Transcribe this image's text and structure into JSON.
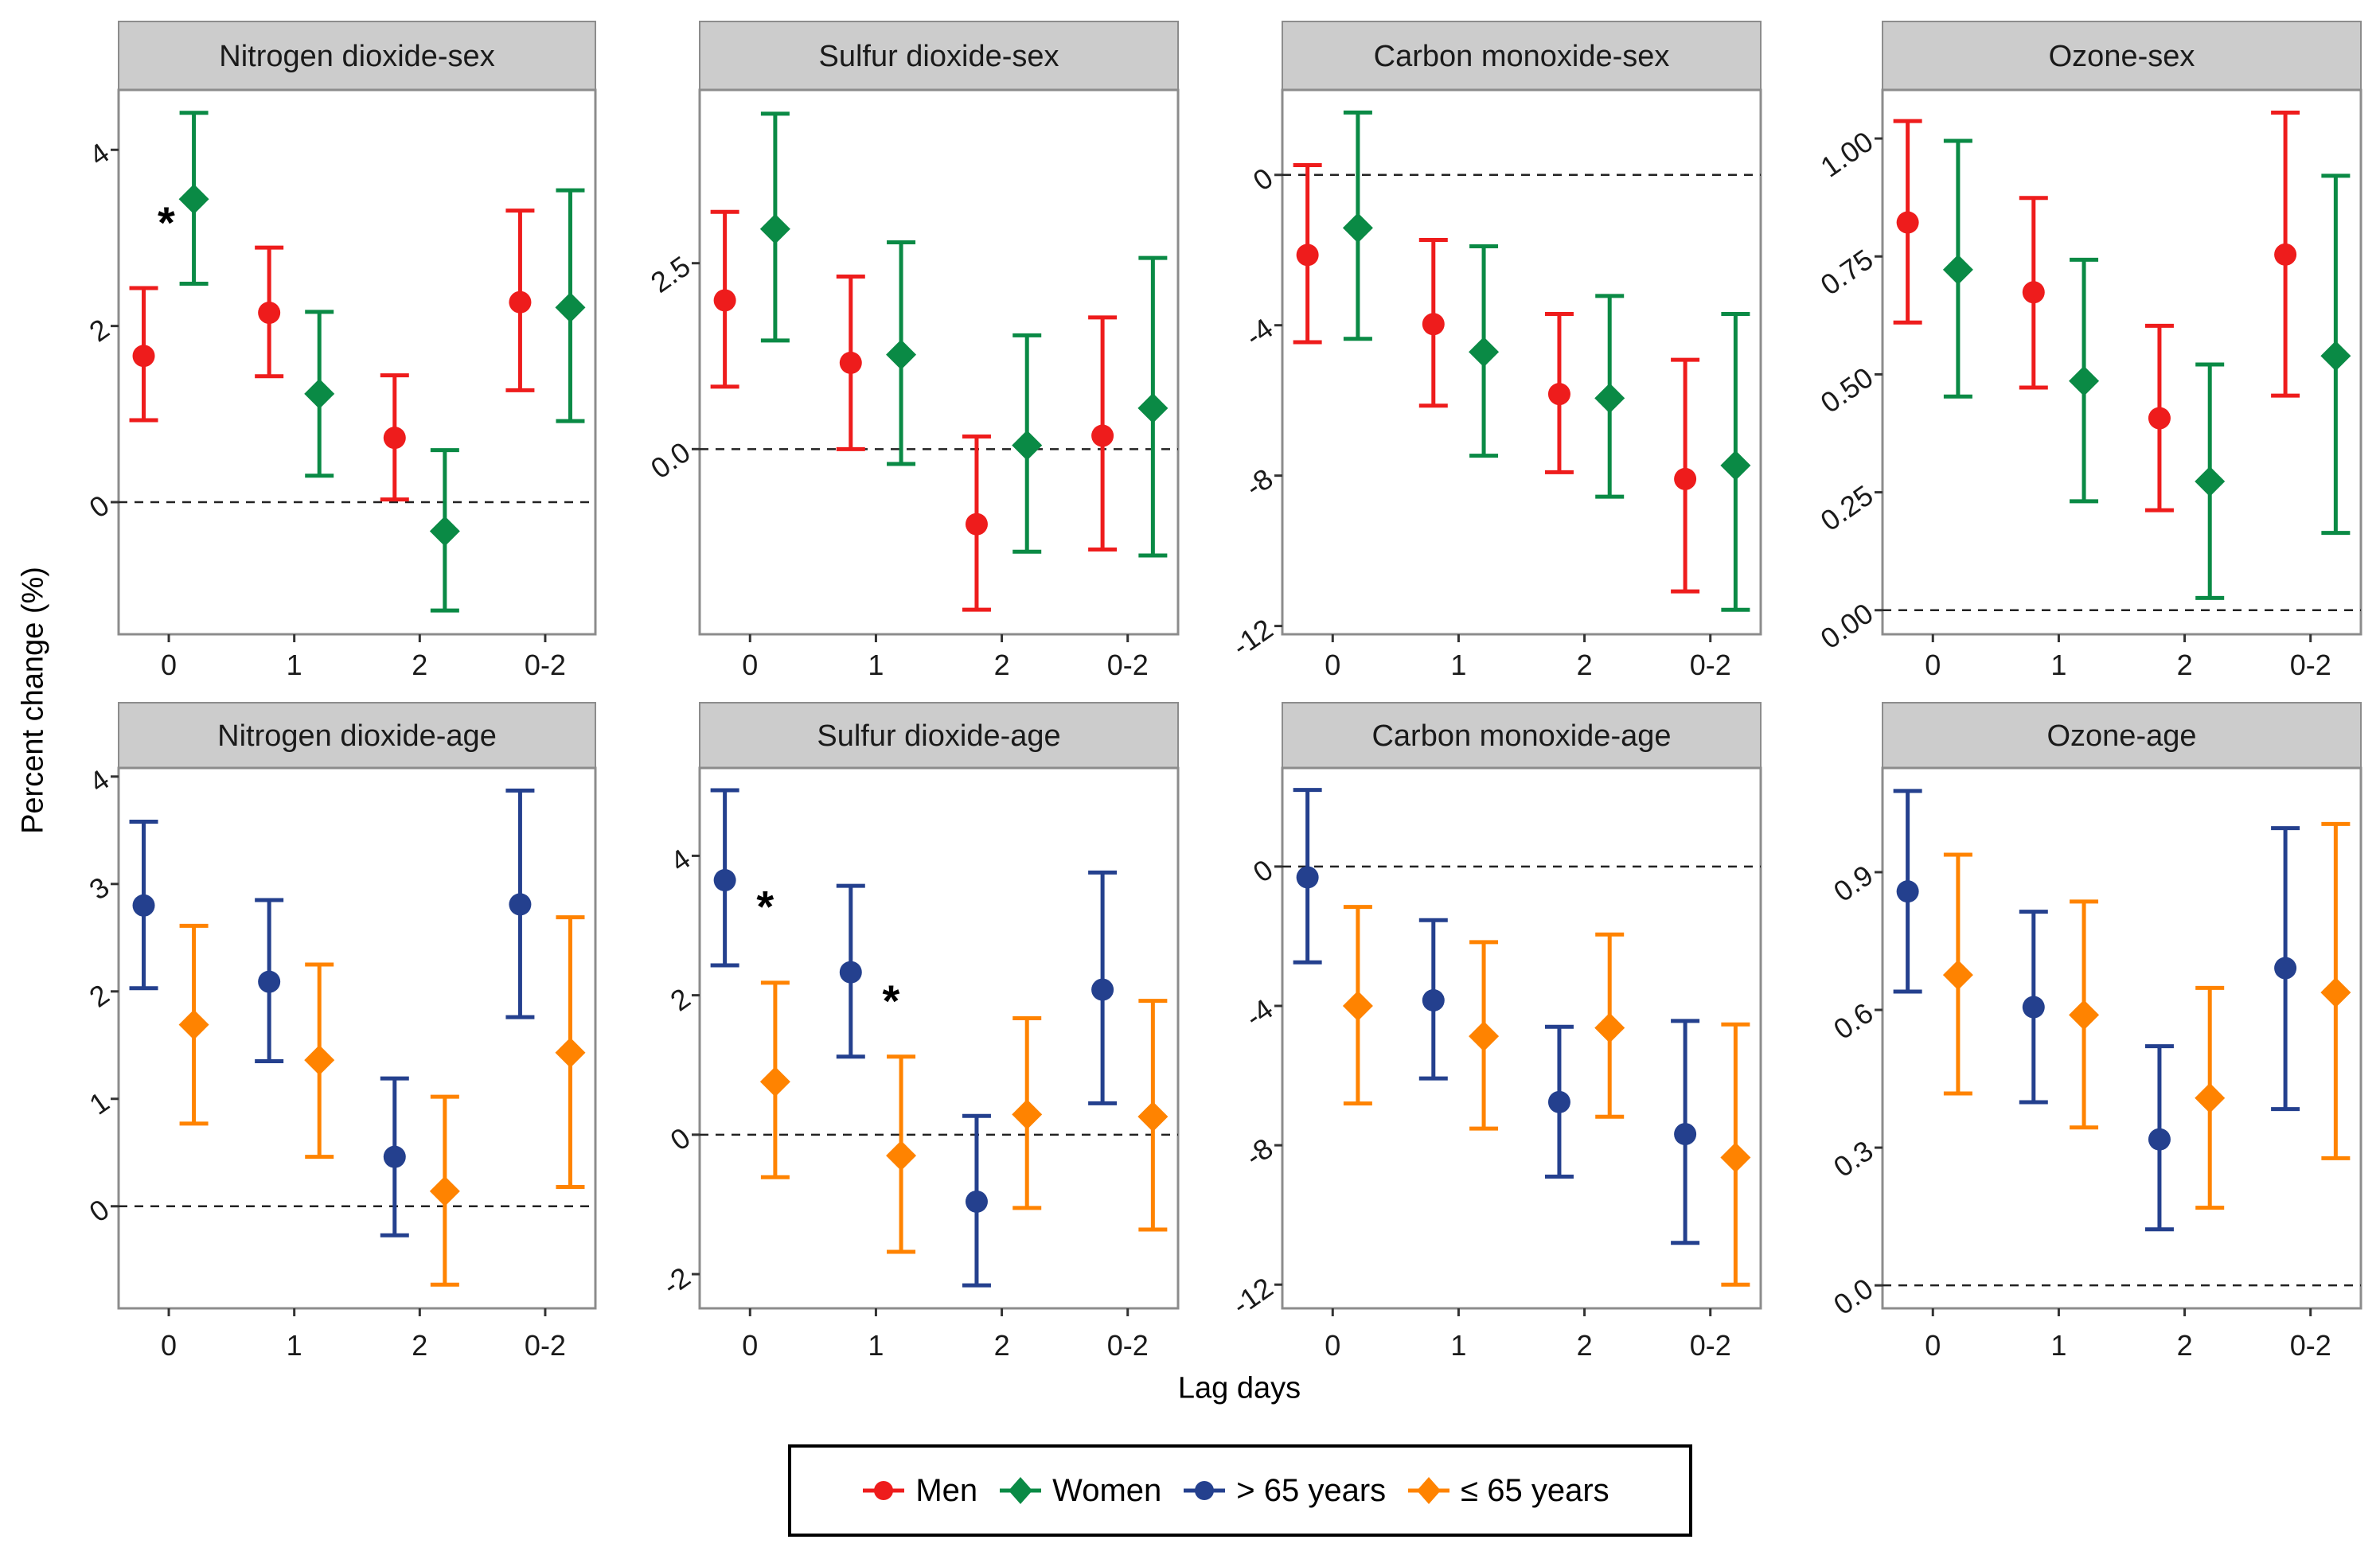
{
  "figure": {
    "ylabel": "Percent change (%)",
    "xlabel": "Lag days"
  },
  "legend": {
    "placement": "bottom-center",
    "items": [
      {
        "label": "Men",
        "color": "#ee1c1c",
        "shape": "circle"
      },
      {
        "label": "Women",
        "color": "#0a8a45",
        "shape": "diamond"
      },
      {
        "label": "> 65 years",
        "color": "#24408e",
        "shape": "circle"
      },
      {
        "label": "≤ 65 years",
        "color": "#ff8300",
        "shape": "diamond"
      }
    ]
  },
  "chart_data": [
    {
      "type": "scatter",
      "title": "Nitrogen dioxide-sex",
      "categories": [
        "0",
        "1",
        "2",
        "0-2"
      ],
      "xlabel": "Lag days",
      "ylabel": "Percent change (%)",
      "ylim": [
        -1.5,
        4.68
      ],
      "yticks": [
        0,
        2,
        4
      ],
      "ytick_labels": [
        "0",
        "2",
        "4"
      ],
      "reference_line": 0,
      "series": [
        {
          "name": "Men",
          "color": "#ee1c1c",
          "shape": "circle",
          "values": [
            1.66,
            2.15,
            0.73,
            2.27
          ],
          "lower": [
            0.93,
            1.43,
            0.03,
            1.27
          ],
          "upper": [
            2.43,
            2.89,
            1.44,
            3.31
          ]
        },
        {
          "name": "Women",
          "color": "#0a8a45",
          "shape": "diamond",
          "values": [
            3.44,
            1.23,
            -0.33,
            2.21
          ],
          "lower": [
            2.48,
            0.3,
            -1.23,
            0.92
          ],
          "upper": [
            4.42,
            2.16,
            0.59,
            3.54
          ]
        }
      ],
      "annotations": [
        {
          "text": "*",
          "category_index": 0,
          "offset": -0.02,
          "y": 3.2
        }
      ]
    },
    {
      "type": "scatter",
      "title": "Sulfur dioxide-sex",
      "categories": [
        "0",
        "1",
        "2",
        "0-2"
      ],
      "ylim": [
        -2.49,
        4.83
      ],
      "yticks": [
        0,
        2.5
      ],
      "ytick_labels": [
        "0.0",
        "2.5"
      ],
      "reference_line": 0,
      "series": [
        {
          "name": "Men",
          "color": "#ee1c1c",
          "shape": "circle",
          "values": [
            2.0,
            1.16,
            -1.01,
            0.18
          ],
          "lower": [
            0.84,
            0.0,
            -2.16,
            -1.35
          ],
          "upper": [
            3.19,
            2.32,
            0.17,
            1.77
          ]
        },
        {
          "name": "Women",
          "color": "#0a8a45",
          "shape": "diamond",
          "values": [
            2.96,
            1.27,
            0.05,
            0.55
          ],
          "lower": [
            1.46,
            -0.2,
            -1.38,
            -1.43
          ],
          "upper": [
            4.51,
            2.78,
            1.53,
            2.57
          ]
        }
      ],
      "annotations": []
    },
    {
      "type": "scatter",
      "title": "Carbon monoxide-sex",
      "categories": [
        "0",
        "1",
        "2",
        "0-2"
      ],
      "ylim": [
        -12.22,
        2.26
      ],
      "yticks": [
        -12,
        -8,
        -4,
        0
      ],
      "ytick_labels": [
        "-12",
        "-8",
        "-4",
        "0"
      ],
      "reference_line": 0,
      "series": [
        {
          "name": "Men",
          "color": "#ee1c1c",
          "shape": "circle",
          "values": [
            -2.13,
            -3.97,
            -5.83,
            -8.09
          ],
          "lower": [
            -4.45,
            -6.14,
            -7.91,
            -11.08
          ],
          "upper": [
            0.26,
            -1.73,
            -3.7,
            -4.92
          ]
        },
        {
          "name": "Women",
          "color": "#0a8a45",
          "shape": "diamond",
          "values": [
            -1.41,
            -4.71,
            -5.94,
            -7.73
          ],
          "lower": [
            -4.36,
            -7.47,
            -8.56,
            -11.57
          ],
          "upper": [
            1.66,
            -1.9,
            -3.22,
            -3.7
          ]
        }
      ],
      "annotations": []
    },
    {
      "type": "scatter",
      "title": "Ozone-sex",
      "categories": [
        "0",
        "1",
        "2",
        "0-2"
      ],
      "ylim": [
        -0.051,
        1.103
      ],
      "yticks": [
        0,
        0.25,
        0.5,
        0.75,
        1.0
      ],
      "ytick_labels": [
        "0.00",
        "0.25",
        "0.50",
        "0.75",
        "1.00"
      ],
      "reference_line": 0,
      "series": [
        {
          "name": "Men",
          "color": "#ee1c1c",
          "shape": "circle",
          "values": [
            0.822,
            0.674,
            0.407,
            0.754
          ],
          "lower": [
            0.61,
            0.472,
            0.212,
            0.455
          ],
          "upper": [
            1.037,
            0.874,
            0.603,
            1.055
          ]
        },
        {
          "name": "Women",
          "color": "#0a8a45",
          "shape": "diamond",
          "values": [
            0.722,
            0.486,
            0.273,
            0.539
          ],
          "lower": [
            0.453,
            0.231,
            0.026,
            0.164
          ],
          "upper": [
            0.995,
            0.743,
            0.521,
            0.921
          ]
        }
      ],
      "annotations": []
    },
    {
      "type": "scatter",
      "title": "Nitrogen dioxide-age",
      "categories": [
        "0",
        "1",
        "2",
        "0-2"
      ],
      "ylim": [
        -0.95,
        4.08
      ],
      "yticks": [
        0,
        1,
        2,
        3,
        4
      ],
      "ytick_labels": [
        "0",
        "1",
        "2",
        "3",
        "4"
      ],
      "reference_line": 0,
      "series": [
        {
          "name": "> 65 years",
          "color": "#24408e",
          "shape": "circle",
          "values": [
            2.8,
            2.09,
            0.46,
            2.81
          ],
          "lower": [
            2.03,
            1.35,
            -0.27,
            1.76
          ],
          "upper": [
            3.58,
            2.85,
            1.19,
            3.87
          ]
        },
        {
          "name": "≤ 65 years",
          "color": "#ff8300",
          "shape": "diamond",
          "values": [
            1.69,
            1.36,
            0.14,
            1.43
          ],
          "lower": [
            0.77,
            0.46,
            -0.73,
            0.18
          ],
          "upper": [
            2.61,
            2.25,
            1.02,
            2.69
          ]
        }
      ],
      "annotations": []
    },
    {
      "type": "scatter",
      "title": "Sulfur dioxide-age",
      "categories": [
        "0",
        "1",
        "2",
        "0-2"
      ],
      "ylim": [
        -2.49,
        5.26
      ],
      "yticks": [
        -2,
        0,
        2,
        4
      ],
      "ytick_labels": [
        "-2",
        "0",
        "2",
        "4"
      ],
      "reference_line": 0,
      "series": [
        {
          "name": "> 65 years",
          "color": "#24408e",
          "shape": "circle",
          "values": [
            3.65,
            2.33,
            -0.96,
            2.08
          ],
          "lower": [
            2.43,
            1.12,
            -2.16,
            0.45
          ],
          "upper": [
            4.94,
            3.57,
            0.27,
            3.76
          ]
        },
        {
          "name": "≤ 65 years",
          "color": "#ff8300",
          "shape": "diamond",
          "values": [
            0.76,
            -0.3,
            0.29,
            0.26
          ],
          "lower": [
            -0.61,
            -1.68,
            -1.05,
            -1.36
          ],
          "upper": [
            2.18,
            1.12,
            1.67,
            1.92
          ]
        }
      ],
      "annotations": [
        {
          "text": "*",
          "category_index": 0,
          "offset": 0.12,
          "y": 3.3
        },
        {
          "text": "*",
          "category_index": 1,
          "offset": 0.12,
          "y": 1.95
        }
      ]
    },
    {
      "type": "scatter",
      "title": "Carbon monoxide-age",
      "categories": [
        "0",
        "1",
        "2",
        "0-2"
      ],
      "ylim": [
        -12.68,
        2.83
      ],
      "yticks": [
        -12,
        -8,
        -4,
        0
      ],
      "ytick_labels": [
        "-12",
        "-8",
        "-4",
        "0"
      ],
      "reference_line": 0,
      "series": [
        {
          "name": "> 65 years",
          "color": "#24408e",
          "shape": "circle",
          "values": [
            -0.31,
            -3.84,
            -6.76,
            -7.68
          ],
          "lower": [
            -2.75,
            -6.08,
            -8.9,
            -10.8
          ],
          "upper": [
            2.2,
            -1.54,
            -4.6,
            -4.43
          ]
        },
        {
          "name": "≤ 65 years",
          "color": "#ff8300",
          "shape": "diamond",
          "values": [
            -4.0,
            -4.87,
            -4.63,
            -8.35
          ],
          "lower": [
            -6.8,
            -7.52,
            -7.18,
            -12.0
          ],
          "upper": [
            -1.16,
            -2.17,
            -1.95,
            -4.53
          ]
        }
      ],
      "annotations": []
    },
    {
      "type": "scatter",
      "title": "Ozone-age",
      "categories": [
        "0",
        "1",
        "2",
        "0-2"
      ],
      "ylim": [
        -0.05,
        1.127
      ],
      "yticks": [
        0,
        0.3,
        0.6,
        0.9
      ],
      "ytick_labels": [
        "0.0",
        "0.3",
        "0.6",
        "0.9"
      ],
      "reference_line": 0,
      "series": [
        {
          "name": "> 65 years",
          "color": "#24408e",
          "shape": "circle",
          "values": [
            0.858,
            0.606,
            0.318,
            0.691
          ],
          "lower": [
            0.64,
            0.399,
            0.122,
            0.384
          ],
          "upper": [
            1.077,
            0.814,
            0.521,
            0.996
          ]
        },
        {
          "name": "≤ 65 years",
          "color": "#ff8300",
          "shape": "diamond",
          "values": [
            0.676,
            0.589,
            0.408,
            0.638
          ],
          "lower": [
            0.418,
            0.344,
            0.169,
            0.277
          ],
          "upper": [
            0.938,
            0.836,
            0.648,
            1.005
          ]
        }
      ],
      "annotations": []
    }
  ]
}
